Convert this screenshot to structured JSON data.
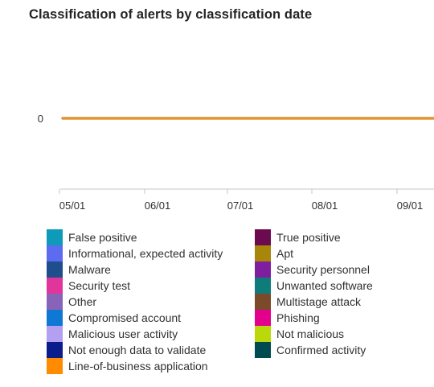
{
  "chart_data": {
    "type": "line",
    "title": "Classification of alerts by classification date",
    "y_ticks": [
      "0"
    ],
    "x_ticks": [
      "05/01",
      "06/01",
      "07/01",
      "08/01",
      "09/01"
    ],
    "series": [
      {
        "name": "False positive",
        "color": "#0e9bba",
        "values": [
          0,
          0,
          0,
          0,
          0
        ]
      },
      {
        "name": "True positive",
        "color": "#6b0a4f",
        "values": [
          0,
          0,
          0,
          0,
          0
        ]
      },
      {
        "name": "Informational, expected activity",
        "color": "#5d6bf0",
        "values": [
          0,
          0,
          0,
          0,
          0
        ]
      },
      {
        "name": "Apt",
        "color": "#a8860a",
        "values": [
          0,
          0,
          0,
          0,
          0
        ]
      },
      {
        "name": "Malware",
        "color": "#1e4f8c",
        "values": [
          0,
          0,
          0,
          0,
          0
        ]
      },
      {
        "name": "Security personnel",
        "color": "#7f1fa0",
        "values": [
          0,
          0,
          0,
          0,
          0
        ]
      },
      {
        "name": "Security test",
        "color": "#e0359a",
        "values": [
          0,
          0,
          0,
          0,
          0
        ]
      },
      {
        "name": "Unwanted software",
        "color": "#107c7a",
        "values": [
          0,
          0,
          0,
          0,
          0
        ]
      },
      {
        "name": "Other",
        "color": "#8764b8",
        "values": [
          0,
          0,
          0,
          0,
          0
        ]
      },
      {
        "name": "Multistage attack",
        "color": "#7a4a2a",
        "values": [
          0,
          0,
          0,
          0,
          0
        ]
      },
      {
        "name": "Compromised account",
        "color": "#0f78d4",
        "values": [
          0,
          0,
          0,
          0,
          0
        ]
      },
      {
        "name": "Phishing",
        "color": "#e3008c",
        "values": [
          0,
          0,
          0,
          0,
          0
        ]
      },
      {
        "name": "Malicious user activity",
        "color": "#b4a0f0",
        "values": [
          0,
          0,
          0,
          0,
          0
        ]
      },
      {
        "name": "Not malicious",
        "color": "#bad80a",
        "values": [
          0,
          0,
          0,
          0,
          0
        ]
      },
      {
        "name": "Not enough data to validate",
        "color": "#0b1c8c",
        "values": [
          0,
          0,
          0,
          0,
          0
        ]
      },
      {
        "name": "Confirmed activity",
        "color": "#004b50",
        "values": [
          0,
          0,
          0,
          0,
          0
        ]
      },
      {
        "name": "Line-of-business application",
        "color": "#ff8c00",
        "values": [
          0,
          0,
          0,
          0,
          0
        ]
      }
    ],
    "grid": false,
    "legend": "bottom"
  }
}
